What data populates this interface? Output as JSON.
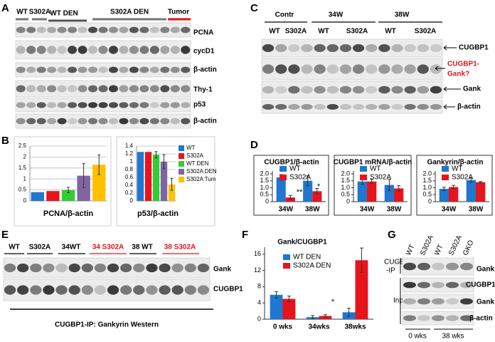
{
  "panel_a": {
    "letter": "A",
    "groups": [
      "WT",
      "S302A",
      "WT DEN",
      "S302A DEN",
      "Tumor"
    ],
    "blots": [
      "PCNA",
      "cycD1",
      "β-actin",
      "Thy-1",
      "p53",
      "β-actin"
    ]
  },
  "panel_b": {
    "letter": "B"
  },
  "panel_c": {
    "letter": "C",
    "groups": [
      "Contr",
      "34W",
      "38W"
    ],
    "lanes": [
      "WT",
      "S302A",
      "WT",
      "S302A",
      "WT",
      "S302A"
    ],
    "blots": [
      "CUGBP1",
      "CUGBP1-",
      "Gank?",
      "Gank",
      "β-actin"
    ]
  },
  "panel_d": {
    "letter": "D"
  },
  "panel_e": {
    "letter": "E",
    "lanes": [
      "WT",
      "S302A",
      "34WT",
      "34 S302A",
      "38 WT",
      "38 S302A"
    ],
    "blots": [
      "Gank",
      "CUGBP1"
    ],
    "caption": "CUGBP1-IP: Gankyrin Western"
  },
  "panel_f": {
    "letter": "F"
  },
  "panel_g": {
    "letter": "G",
    "lanes": [
      "WT",
      "S302A",
      "WT",
      "S302A",
      "GKO"
    ],
    "left_labels": [
      "CUGBP1",
      "-IP",
      "Input"
    ],
    "blots": [
      "Gank",
      "CUGBP1",
      "Gank",
      "β-actin"
    ],
    "groups": [
      "0 wks",
      "38 wks"
    ]
  },
  "chart_data": [
    {
      "type": "bar",
      "title": "PCNA/β-actin",
      "values": [
        0.4,
        0.45,
        0.5,
        1.15,
        1.65
      ],
      "errors": [
        null,
        null,
        0.12,
        0.55,
        0.45
      ],
      "colors": [
        "#1f77d0",
        "#e8141c",
        "#33cc33",
        "#8064a2",
        "#ffc000"
      ],
      "ylim": [
        0,
        2.5
      ],
      "yticks": [
        0,
        0.5,
        1,
        1.5,
        2,
        2.5
      ],
      "grid": true
    },
    {
      "type": "bar",
      "title": "p53/β-actin",
      "categories": [
        "WT",
        "S302A",
        "WT DEN",
        "S302A DEN",
        "S302A Tum"
      ],
      "values": [
        1.25,
        1.25,
        1.18,
        1.0,
        0.42
      ],
      "errors": [
        null,
        null,
        0.08,
        0.18,
        0.15
      ],
      "colors": [
        "#1f77d0",
        "#e8141c",
        "#33cc33",
        "#8064a2",
        "#ffc000"
      ],
      "ylim": [
        0,
        1.4
      ],
      "yticks": [
        0,
        0.2,
        0.4,
        0.6,
        0.8,
        1,
        1.2,
        1.4
      ],
      "grid": true
    },
    {
      "type": "bar",
      "title": "CUGBP1/β-actin",
      "categories": [
        "34W",
        "38W"
      ],
      "series": [
        {
          "name": "WT",
          "color": "#1f77d0",
          "values": [
            1.75,
            1.5
          ],
          "errors": [
            0.2,
            0.35
          ]
        },
        {
          "name": "S302A",
          "color": "#e8141c",
          "values": [
            0.3,
            0.75
          ],
          "errors": [
            0.15,
            0.2
          ]
        }
      ],
      "ylim": [
        0,
        2.0
      ],
      "yticks": [
        0,
        0.5,
        {
          "value": 1,
          "label": "1.0"
        },
        1.5,
        {
          "value": 2,
          "label": "2.0"
        }
      ],
      "grid": false,
      "annotations": [
        "**",
        "*"
      ]
    },
    {
      "type": "bar",
      "title": "CUGBP1 mRNA/β-actin",
      "categories": [
        "34W",
        "38W"
      ],
      "series": [
        {
          "name": "WT",
          "color": "#1f77d0",
          "values": [
            1.45,
            1.2
          ],
          "errors": [
            0.2,
            0.4
          ]
        },
        {
          "name": "S302A",
          "color": "#e8141c",
          "values": [
            1.45,
            0.95
          ],
          "errors": [
            0.15,
            0.2
          ]
        }
      ],
      "ylim": [
        0,
        2.0
      ],
      "yticks": [
        0,
        0.5,
        {
          "value": 1,
          "label": "1.0"
        },
        1.5,
        {
          "value": 2,
          "label": "2.0"
        }
      ],
      "grid": false
    },
    {
      "type": "bar",
      "title": "Gankyrin/β-actin",
      "categories": [
        "34W",
        "38W"
      ],
      "series": [
        {
          "name": "WT",
          "color": "#1f77d0",
          "values": [
            0.92,
            1.55
          ],
          "errors": [
            0.12,
            0.15
          ]
        },
        {
          "name": "S302A",
          "color": "#e8141c",
          "values": [
            1.05,
            1.4
          ],
          "errors": [
            0.12,
            0.05
          ]
        }
      ],
      "ylim": [
        0,
        2.0
      ],
      "yticks": [
        0,
        0.5,
        {
          "value": 1,
          "label": "1.0"
        },
        1.5,
        {
          "value": 2,
          "label": "2.0"
        }
      ],
      "grid": false
    },
    {
      "type": "bar",
      "title": "Gank/CUGBP1",
      "categories": [
        "0 wks",
        "34wks",
        "38wks"
      ],
      "series": [
        {
          "name": "WT DEN",
          "color": "#1f77d0",
          "values": [
            6,
            0.5,
            1.7
          ],
          "errors": [
            0.8,
            0.4,
            1
          ]
        },
        {
          "name": "S302A DEN",
          "color": "#e8141c",
          "values": [
            5,
            0.8,
            14.5
          ],
          "errors": [
            0.7,
            0.3,
            3
          ]
        }
      ],
      "ylim": [
        0,
        17
      ],
      "yticks": [
        0,
        4,
        8,
        12,
        16
      ],
      "grid": false,
      "annotations": [
        "*"
      ]
    }
  ]
}
